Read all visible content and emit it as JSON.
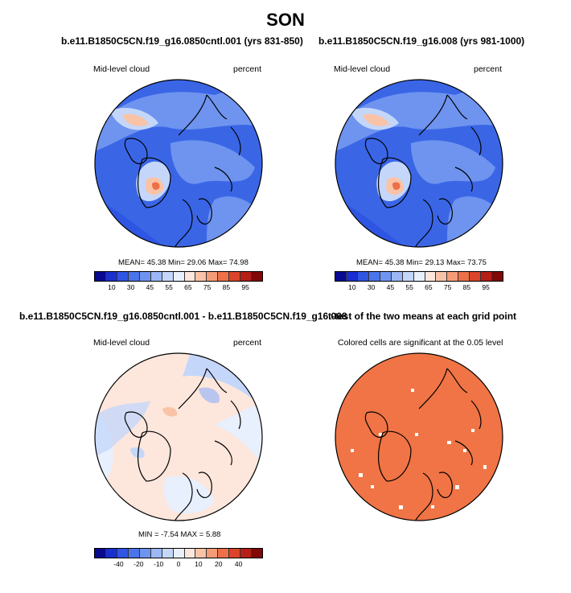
{
  "figure": {
    "season_title": "SON"
  },
  "panels": {
    "top_left": {
      "title": "b.e11.B1850C5CN.f19_g16.0850cntl.001 (yrs 831-850)",
      "variable": "Mid-level cloud",
      "units": "percent",
      "stats": "MEAN=  45.38  Min=  29.06  Max=  74.98",
      "colorbar_ticks": [
        "10",
        "30",
        "45",
        "55",
        "65",
        "75",
        "85",
        "95"
      ]
    },
    "top_right": {
      "title": "b.e11.B1850C5CN.f19_g16.008 (yrs 981-1000)",
      "variable": "Mid-level cloud",
      "units": "percent",
      "stats": "MEAN=  45.38  Min=  29.13  Max=  73.75",
      "colorbar_ticks": [
        "10",
        "30",
        "45",
        "55",
        "65",
        "75",
        "85",
        "95"
      ]
    },
    "bottom_left": {
      "title": "b.e11.B1850C5CN.f19_g16.0850cntl.001 - b.e11.B1850C5CN.f19_g16.008",
      "variable": "Mid-level cloud",
      "units": "percent",
      "stats": "MIN =  -7.54  MAX =   5.88",
      "colorbar_ticks": [
        "-40",
        "-20",
        "-10",
        "0",
        "10",
        "20",
        "40"
      ]
    },
    "bottom_right": {
      "title": "t-test of the two means at each grid point",
      "subtitle": "Colored cells are significant at the 0.05 level"
    }
  },
  "colors": {
    "abs_scale": [
      "#0a0a8f",
      "#1a2fd0",
      "#2f55e3",
      "#4a74ea",
      "#6e94f0",
      "#9bb7f5",
      "#c4d7fa",
      "#e8effd",
      "#fde6dc",
      "#f9c3a8",
      "#f49c78",
      "#ec7048",
      "#d9442a",
      "#b51f15",
      "#800808"
    ],
    "diff_scale": [
      "#0a0a8f",
      "#1a2fd0",
      "#2f55e3",
      "#4a74ea",
      "#6e94f0",
      "#9bb7f5",
      "#c4d7fa",
      "#e8effd",
      "#fde6dc",
      "#f9c3a8",
      "#f49c78",
      "#ec7048",
      "#d9442a",
      "#b51f15",
      "#800808"
    ],
    "map_base_blue": "#3a66e6",
    "map_mid_blue": "#6e94f0",
    "diff_base": "#fde6dc",
    "ttest_fill": "#f07445"
  }
}
